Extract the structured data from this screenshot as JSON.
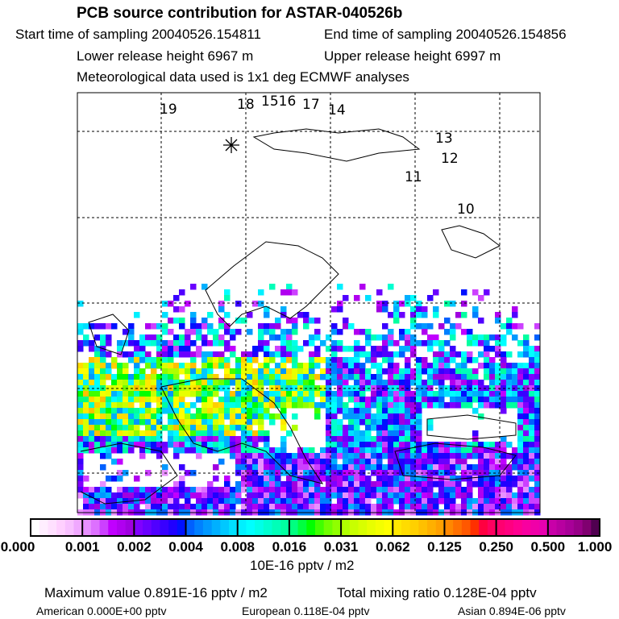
{
  "title": "PCB source contribution for ASTAR-040526b",
  "start": "Start time of sampling 20040526.154811",
  "end": "End time of sampling 20040526.154856",
  "lower": "Lower release height 6967 m",
  "upper": "Upper release height 6997 m",
  "met": "Meteorological data used is 1x1 deg ECMWF analyses",
  "track_labels": [
    "19",
    "18",
    "1516",
    "17",
    "14",
    "13",
    "12",
    "11",
    "10"
  ],
  "colorbar": {
    "ticks": [
      "0.000",
      "0.001",
      "0.002",
      "0.004",
      "0.008",
      "0.016",
      "0.031",
      "0.062",
      "0.125",
      "0.250",
      "0.500",
      "1.000"
    ],
    "unit": "10E-16 pptv / m2",
    "colors": [
      "#ffffff",
      "#ffeeff",
      "#ffe0ff",
      "#ffd0ff",
      "#f8c0ff",
      "#f0a8ff",
      "#e890ff",
      "#dd70ff",
      "#cc40ff",
      "#c000ff",
      "#b000f0",
      "#a000e0",
      "#8000ff",
      "#6a00ff",
      "#5000ff",
      "#3800ff",
      "#2000ff",
      "#0010ff",
      "#0060ff",
      "#0080ff",
      "#0098ff",
      "#00b0ff",
      "#00c8ff",
      "#00e0ff",
      "#00f0ff",
      "#00ffff",
      "#00ffe8",
      "#00ffd0",
      "#00ffb8",
      "#00ffa0",
      "#00ff80",
      "#00ff40",
      "#00ff00",
      "#40ff00",
      "#70ff00",
      "#90ff00",
      "#b0ff00",
      "#c8ff00",
      "#d8ff00",
      "#e8ff00",
      "#f4ff00",
      "#ffff00",
      "#ffe800",
      "#ffdc00",
      "#ffd000",
      "#ffc000",
      "#ffb000",
      "#ffa000",
      "#ff8800",
      "#ff7000",
      "#ff5800",
      "#ff3000",
      "#ff0040",
      "#ff0060",
      "#ff0070",
      "#ff0080",
      "#ff0090",
      "#f800a0",
      "#f000a8",
      "#e800b0",
      "#c800a8",
      "#b800a0",
      "#a80098",
      "#980088",
      "#800070",
      "#500050"
    ]
  },
  "max_value": "Maximum value  0.891E-16 pptv / m2",
  "total": "Total mixing ratio  0.128E-04 pptv",
  "american": "American  0.000E+00 pptv",
  "european": "European  0.118E-04 pptv",
  "asian": "Asian  0.894E-06 pptv"
}
